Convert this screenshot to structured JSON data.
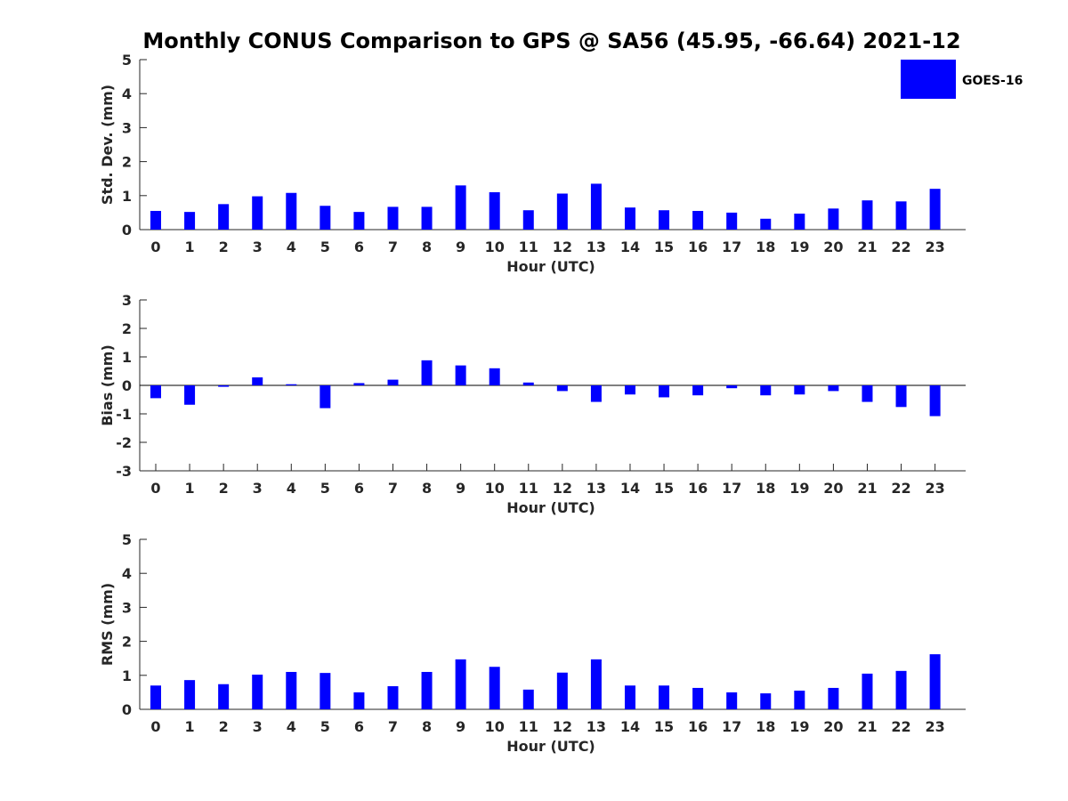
{
  "title": "Monthly CONUS Comparison to GPS @ SA56 (45.95, -66.64) 2021-12",
  "legend": {
    "label": "GOES-16",
    "color": "#0000ff",
    "placement": "top-right"
  },
  "chart_data": [
    {
      "type": "bar",
      "xlabel": "Hour (UTC)",
      "ylabel": "Std. Dev. (mm)",
      "ylim": [
        0,
        5
      ],
      "yticks": [
        0,
        1,
        2,
        3,
        4,
        5
      ],
      "categories": [
        "0",
        "1",
        "2",
        "3",
        "4",
        "5",
        "6",
        "7",
        "8",
        "9",
        "10",
        "11",
        "12",
        "13",
        "14",
        "15",
        "16",
        "17",
        "18",
        "19",
        "20",
        "21",
        "22",
        "23"
      ],
      "series": [
        {
          "name": "GOES-16",
          "color": "#0000ff",
          "values": [
            0.55,
            0.52,
            0.75,
            0.98,
            1.08,
            0.7,
            0.52,
            0.67,
            0.67,
            1.3,
            1.1,
            0.57,
            1.06,
            1.35,
            0.65,
            0.57,
            0.55,
            0.5,
            0.32,
            0.47,
            0.62,
            0.86,
            0.83,
            1.2
          ]
        }
      ]
    },
    {
      "type": "bar",
      "xlabel": "Hour (UTC)",
      "ylabel": "Bias (mm)",
      "ylim": [
        -3,
        3
      ],
      "yticks": [
        -3,
        -2,
        -1,
        0,
        1,
        2,
        3
      ],
      "zero_line": true,
      "categories": [
        "0",
        "1",
        "2",
        "3",
        "4",
        "5",
        "6",
        "7",
        "8",
        "9",
        "10",
        "11",
        "12",
        "13",
        "14",
        "15",
        "16",
        "17",
        "18",
        "19",
        "20",
        "21",
        "22",
        "23"
      ],
      "series": [
        {
          "name": "GOES-16",
          "color": "#0000ff",
          "values": [
            -0.45,
            -0.68,
            -0.05,
            0.28,
            0.04,
            -0.8,
            0.08,
            0.2,
            0.88,
            0.7,
            0.6,
            0.1,
            -0.2,
            -0.58,
            -0.32,
            -0.42,
            -0.35,
            -0.1,
            -0.35,
            -0.32,
            -0.2,
            -0.58,
            -0.76,
            -1.08
          ]
        }
      ]
    },
    {
      "type": "bar",
      "xlabel": "Hour (UTC)",
      "ylabel": "RMS (mm)",
      "ylim": [
        0,
        5
      ],
      "yticks": [
        0,
        1,
        2,
        3,
        4,
        5
      ],
      "categories": [
        "0",
        "1",
        "2",
        "3",
        "4",
        "5",
        "6",
        "7",
        "8",
        "9",
        "10",
        "11",
        "12",
        "13",
        "14",
        "15",
        "16",
        "17",
        "18",
        "19",
        "20",
        "21",
        "22",
        "23"
      ],
      "series": [
        {
          "name": "GOES-16",
          "color": "#0000ff",
          "values": [
            0.7,
            0.86,
            0.74,
            1.02,
            1.1,
            1.07,
            0.5,
            0.68,
            1.1,
            1.47,
            1.25,
            0.58,
            1.08,
            1.47,
            0.7,
            0.7,
            0.63,
            0.5,
            0.47,
            0.55,
            0.63,
            1.05,
            1.13,
            1.62
          ]
        }
      ]
    }
  ]
}
